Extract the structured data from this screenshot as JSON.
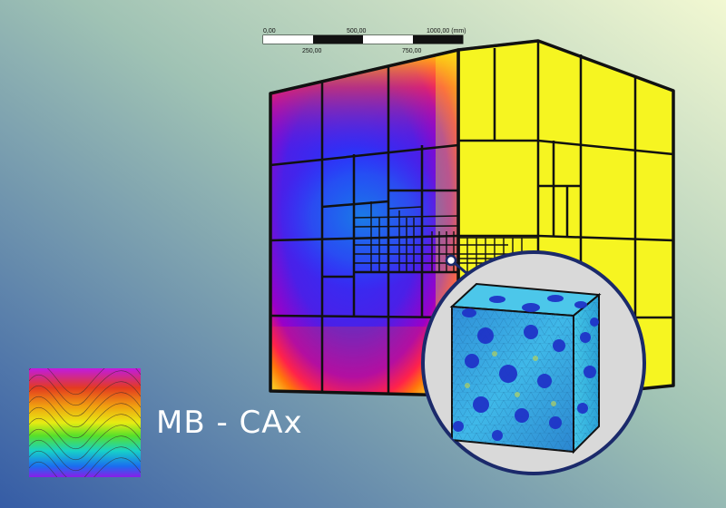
{
  "colors": {
    "bg_top_right": "#f1f7d0",
    "bg_mid": "#8fb5b4",
    "bg_bottom_left": "#3b63a8",
    "yellow_face": "#f6f521",
    "outline": "#111111",
    "inset_fill": "#d9d9d9"
  },
  "scale_bar": {
    "top_labels": [
      "0,00",
      "500,00",
      "1000,00 (mm)"
    ],
    "bottom_labels": [
      "250,00",
      "750,00"
    ]
  },
  "brand": {
    "name": "MB - CAx",
    "logo_icon": "contour-wave-logo-icon"
  },
  "illustration": {
    "main_model_icon": "octree-mesh-cube-icon",
    "inset_icon": "microstructure-fem-cube-icon"
  }
}
